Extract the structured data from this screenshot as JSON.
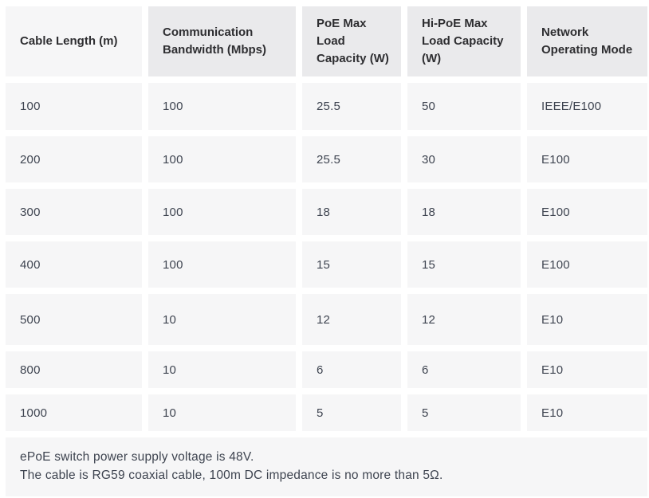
{
  "table": {
    "columns": [
      {
        "label": "Cable Length (m)"
      },
      {
        "label": "Communication Bandwidth (Mbps)"
      },
      {
        "label": "PoE Max Load Capacity (W)"
      },
      {
        "label": "Hi-PoE Max Load Capacity (W)"
      },
      {
        "label": "Network Operating Mode"
      }
    ],
    "rows": [
      [
        "100",
        "100",
        "25.5",
        "50",
        "IEEE/E100"
      ],
      [
        "200",
        "100",
        "25.5",
        "30",
        "E100"
      ],
      [
        "300",
        "100",
        "18",
        "18",
        "E100"
      ],
      [
        "400",
        "100",
        "15",
        "15",
        "E100"
      ],
      [
        "500",
        "10",
        "12",
        "12",
        "E10"
      ],
      [
        "800",
        "10",
        "6",
        "6",
        "E10"
      ],
      [
        "1000",
        "10",
        "5",
        "5",
        "E10"
      ]
    ],
    "notes": [
      "ePoE switch power supply voltage is 48V.",
      "The cable is RG59 coaxial cable, 100m DC impedance is no more than 5Ω."
    ]
  },
  "colors": {
    "cell_background": "#f6f6f7",
    "header_background": "#eaeaec",
    "header_text": "#2e2e31",
    "body_text": "#3e4450",
    "gap": "#ffffff"
  }
}
